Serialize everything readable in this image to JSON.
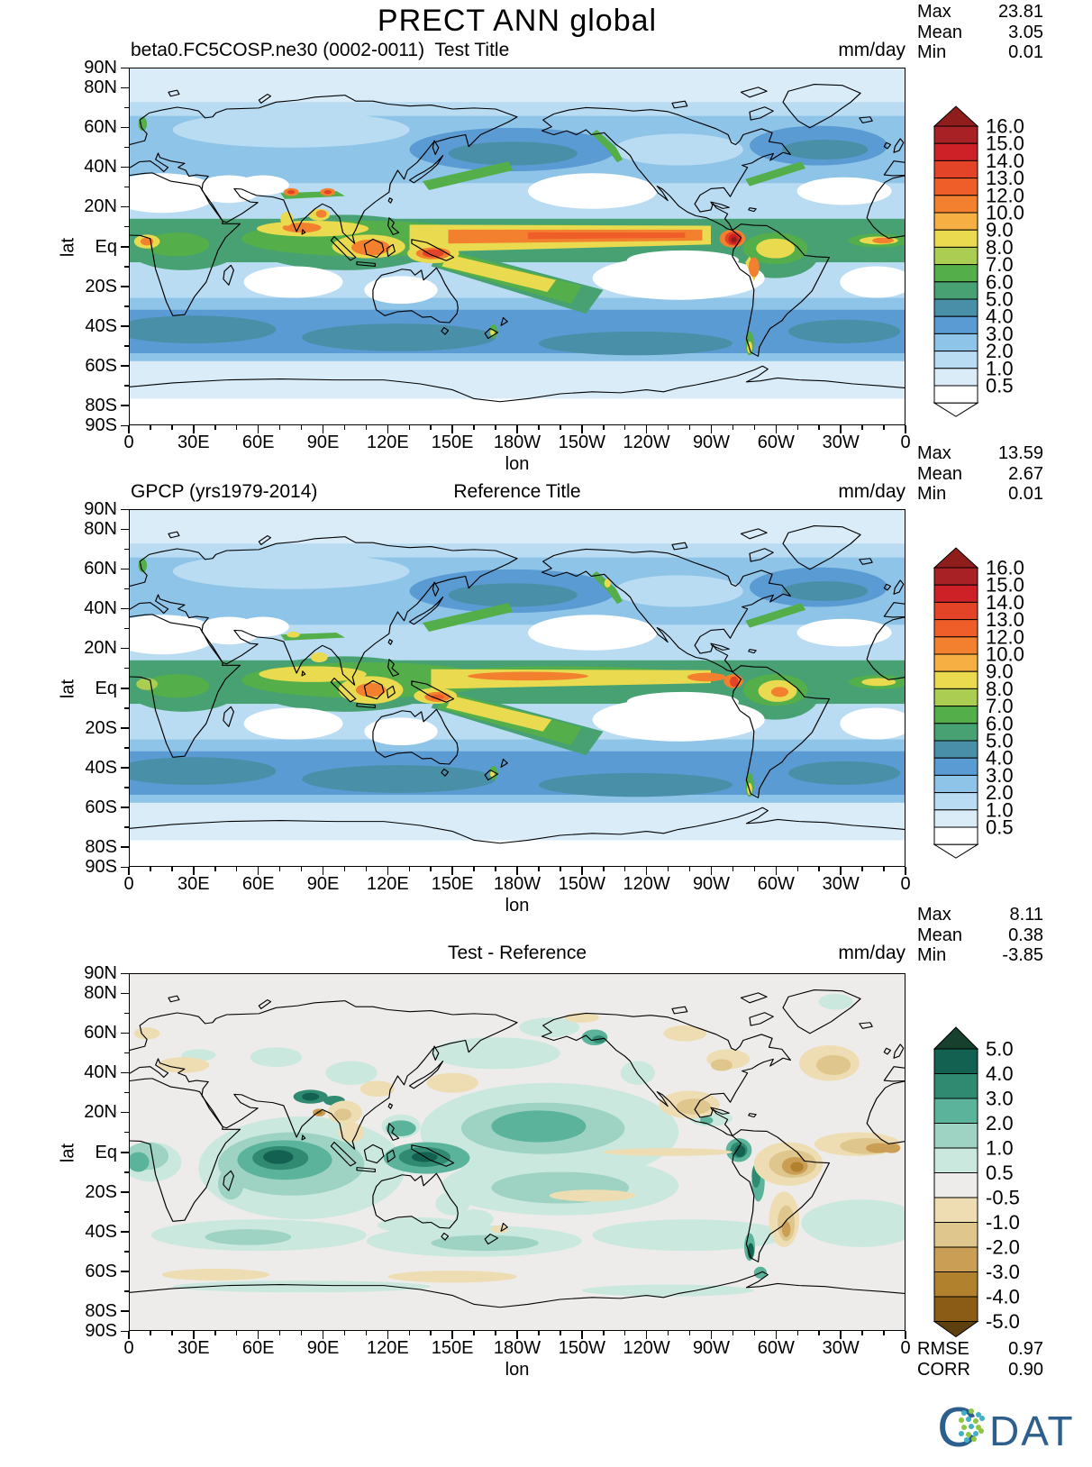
{
  "title": "PRECT ANN global",
  "panels": [
    {
      "left_title": "beta0.FC5COSP.ne30 (0002-0011)  Test Title",
      "center_title": "",
      "units": "mm/day"
    },
    {
      "left_title": "GPCP (yrs1979-2014)",
      "center_title": "Reference Title",
      "units": "mm/day"
    },
    {
      "left_title": "",
      "center_title": "Test - Reference",
      "units": "mm/day"
    }
  ],
  "stats_blocks": [
    {
      "rows": [
        {
          "label": "Max",
          "value": "23.81"
        },
        {
          "label": "Mean",
          "value": "3.05"
        },
        {
          "label": "Min",
          "value": "0.01"
        }
      ]
    },
    {
      "rows": [
        {
          "label": "Max",
          "value": "13.59"
        },
        {
          "label": "Mean",
          "value": "2.67"
        },
        {
          "label": "Min",
          "value": "0.01"
        }
      ]
    },
    {
      "rows": [
        {
          "label": "Max",
          "value": "8.11"
        },
        {
          "label": "Mean",
          "value": "0.38"
        },
        {
          "label": "Min",
          "value": "-3.85"
        }
      ]
    },
    {
      "rows": [
        {
          "label": "RMSE",
          "value": "0.97"
        },
        {
          "label": "CORR",
          "value": "0.90"
        }
      ]
    }
  ],
  "axes": {
    "lat_label": "lat",
    "lon_label": "lon",
    "lat_ticks": [
      "90N",
      "80N",
      "60N",
      "40N",
      "20N",
      "Eq",
      "20S",
      "40S",
      "60S",
      "80S",
      "90S"
    ],
    "lon_ticks": [
      "0",
      "30E",
      "60E",
      "90E",
      "120E",
      "150E",
      "180W",
      "150W",
      "120W",
      "90W",
      "60W",
      "30W",
      "0"
    ]
  },
  "colorbar_precip": {
    "labels": [
      "16.0",
      "15.0",
      "14.0",
      "13.0",
      "12.0",
      "10.0",
      "9.0",
      "8.0",
      "7.0",
      "6.0",
      "5.0",
      "4.0",
      "3.0",
      "2.0",
      "1.0",
      "0.5"
    ],
    "colors": [
      "#8f1d1c",
      "#a82125",
      "#cd2127",
      "#e34427",
      "#ef5e29",
      "#f2802e",
      "#f6af43",
      "#e9da4f",
      "#aacd52",
      "#54ae4a",
      "#47a173",
      "#4a8fa8",
      "#5b9bd3",
      "#8ec4e8",
      "#b9dcf2",
      "#d9ecf8",
      "#ffffff"
    ]
  },
  "colorbar_diff": {
    "labels": [
      "5.0",
      "4.0",
      "3.0",
      "2.0",
      "1.0",
      "0.5",
      "-0.5",
      "-1.0",
      "-2.0",
      "-3.0",
      "-4.0",
      "-5.0"
    ],
    "colors": [
      "#17402e",
      "#136150",
      "#2f8a71",
      "#5cb39c",
      "#9ed3c4",
      "#cbe8df",
      "#edecea",
      "#eeddb2",
      "#dfc68c",
      "#ca9f55",
      "#b1812d",
      "#8a5c15",
      "#5e3f0e"
    ]
  },
  "logo": {
    "text_c": "C",
    "text_rest": "DAT",
    "blue": "#2d5f8d",
    "dot_teal": "#3fb0c5",
    "dot_green": "#8dc63f"
  },
  "chart_data": {
    "type": "heatmap",
    "subtype": "filled-contour-world-maps",
    "projection": "equirectangular",
    "variable": "PRECT",
    "season": "ANN",
    "region": "global",
    "units": "mm/day",
    "lon_range": [
      0,
      360
    ],
    "lat_range": [
      -90,
      90
    ],
    "lon_tick_labels": [
      "0",
      "30E",
      "60E",
      "90E",
      "120E",
      "150E",
      "180W",
      "150W",
      "120W",
      "90W",
      "60W",
      "30W",
      "0"
    ],
    "lat_tick_labels": [
      "90N",
      "80N",
      "60N",
      "40N",
      "20N",
      "Eq",
      "20S",
      "40S",
      "60S",
      "80S",
      "90S"
    ],
    "panels": [
      {
        "name": "test",
        "title": "beta0.FC5COSP.ne30 (0002-0011) Test Title",
        "stats": {
          "max": 23.81,
          "mean": 3.05,
          "min": 0.01
        },
        "contour_levels": [
          0.5,
          1,
          2,
          3,
          4,
          5,
          6,
          7,
          8,
          9,
          10,
          12,
          13,
          14,
          15,
          16
        ]
      },
      {
        "name": "reference",
        "title": "GPCP (yrs1979-2014) Reference Title",
        "stats": {
          "max": 13.59,
          "mean": 2.67,
          "min": 0.01
        },
        "contour_levels": [
          0.5,
          1,
          2,
          3,
          4,
          5,
          6,
          7,
          8,
          9,
          10,
          12,
          13,
          14,
          15,
          16
        ]
      },
      {
        "name": "difference",
        "title": "Test - Reference",
        "stats": {
          "max": 8.11,
          "mean": 0.38,
          "min": -3.85
        },
        "metrics": {
          "rmse": 0.97,
          "corr": 0.9
        },
        "contour_levels": [
          -5,
          -4,
          -3,
          -2,
          -1,
          -0.5,
          0.5,
          1,
          2,
          3,
          4,
          5
        ]
      }
    ]
  }
}
